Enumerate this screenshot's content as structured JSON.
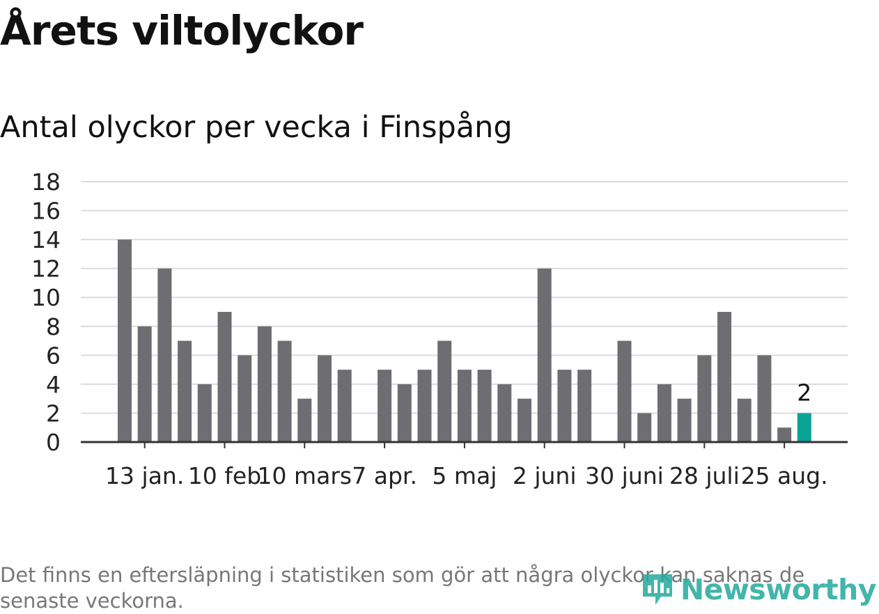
{
  "title": "Årets viltolyckor",
  "subtitle": "Antal olyckor per vecka i Finspång",
  "footnote": "Det finns en eftersläpning i statistiken som gör att några olyckor kan saknas de senaste veckorna.",
  "brand": {
    "name": "Newsworthy",
    "icon": "newsworthy-logo-icon",
    "color": "#23a99c"
  },
  "chart_data": {
    "type": "bar",
    "ylim": [
      0,
      18
    ],
    "yticks": [
      0,
      2,
      4,
      6,
      8,
      10,
      12,
      14,
      16,
      18
    ],
    "grid": true,
    "bar_color": "#6e6d72",
    "highlight_color": "#0aa398",
    "values": [
      14,
      8,
      12,
      7,
      4,
      9,
      6,
      8,
      7,
      3,
      6,
      5,
      0,
      5,
      4,
      5,
      7,
      5,
      5,
      4,
      3,
      12,
      5,
      5,
      0,
      7,
      2,
      4,
      3,
      6,
      9,
      3,
      6,
      1,
      2
    ],
    "highlight_index": 34,
    "highlight_label": "2",
    "xticks": [
      {
        "index": 1,
        "label": "13 jan."
      },
      {
        "index": 5,
        "label": "10 feb"
      },
      {
        "index": 9,
        "label": "10 mars"
      },
      {
        "index": 13,
        "label": "7 apr."
      },
      {
        "index": 17,
        "label": "5 maj"
      },
      {
        "index": 21,
        "label": "2 juni"
      },
      {
        "index": 25,
        "label": "30 juni"
      },
      {
        "index": 29,
        "label": "28 juli"
      },
      {
        "index": 33,
        "label": "25 aug."
      }
    ]
  }
}
